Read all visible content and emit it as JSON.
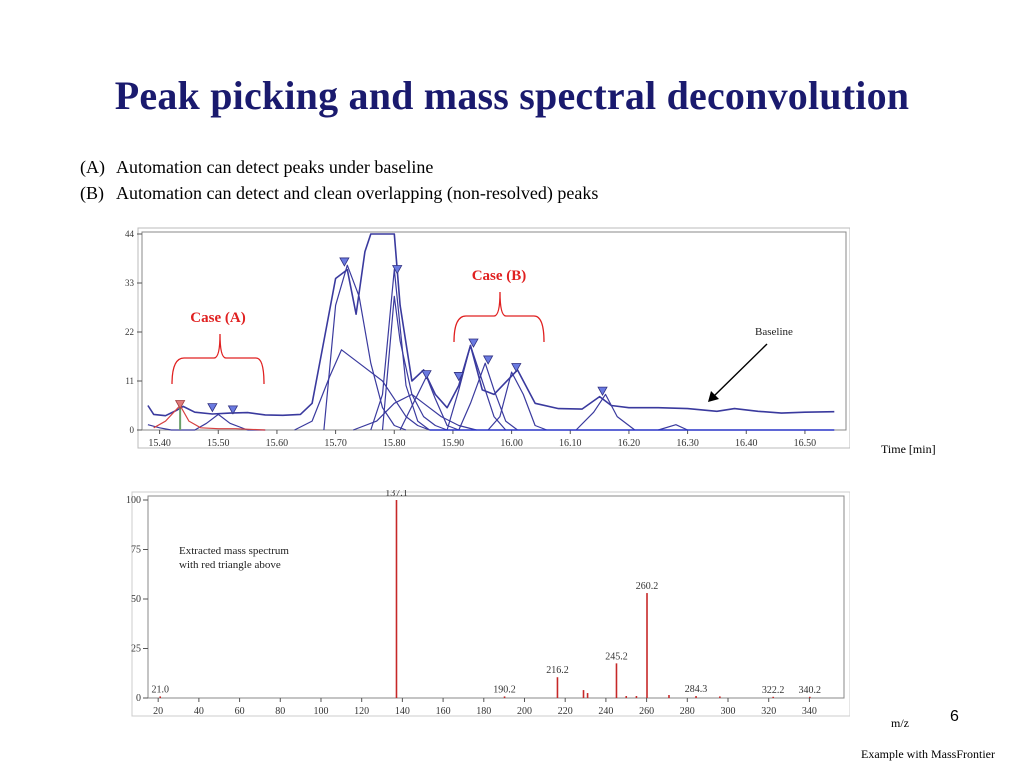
{
  "slide": {
    "title": "Peak picking and mass spectral deconvolution",
    "bullets": [
      {
        "tag": "(A)",
        "text": "Automation can detect peaks under baseline"
      },
      {
        "tag": "(B)",
        "text": "Automation can detect and clean overlapping (non-resolved) peaks"
      }
    ],
    "time_axis_label": "Time [min]",
    "mz_axis_label": "m/z",
    "footer": "Example with MassFrontier",
    "slide_number": "6"
  },
  "colors": {
    "title": "#1a1a6e",
    "trace": "#3a3a9e",
    "marker": "#6a7ae0",
    "marker_red": "#e07a7a",
    "case_annotation": "#e02020",
    "spectrum_line": "#c62828"
  },
  "chart_data": [
    {
      "type": "line",
      "xlim": [
        15.37,
        16.57
      ],
      "ylim": [
        0,
        44
      ],
      "x_ticks": [
        15.4,
        15.5,
        15.6,
        15.7,
        15.8,
        15.9,
        16.0,
        16.1,
        16.2,
        16.3,
        16.4,
        16.5
      ],
      "x_tick_labels": [
        "15.40",
        "15.50",
        "15.60",
        "15.70",
        "15.80",
        "15.90",
        "16.00",
        "16.10",
        "16.20",
        "16.30",
        "16.40",
        "16.50"
      ],
      "y_ticks": [
        0,
        11,
        22,
        33,
        44
      ],
      "y_tick_labels": [
        "0",
        "11",
        "22",
        "33",
        "44"
      ],
      "xlabel": "Time [min]",
      "series": [
        {
          "values": [
            [
              15.38,
              5.5
            ],
            [
              15.39,
              3.5
            ],
            [
              15.41,
              3.2
            ],
            [
              15.43,
              4.5
            ],
            [
              15.44,
              5.3
            ],
            [
              15.46,
              4.0
            ],
            [
              15.49,
              3.6
            ],
            [
              15.52,
              3.8
            ],
            [
              15.55,
              3.9
            ],
            [
              15.58,
              3.4
            ],
            [
              15.61,
              3.3
            ],
            [
              15.64,
              3.5
            ],
            [
              15.66,
              6
            ],
            [
              15.68,
              20
            ],
            [
              15.7,
              34
            ],
            [
              15.72,
              36
            ],
            [
              15.735,
              26
            ],
            [
              15.75,
              40
            ],
            [
              15.76,
              44
            ],
            [
              15.8,
              44
            ],
            [
              15.81,
              28
            ],
            [
              15.83,
              11
            ],
            [
              15.85,
              13.5
            ],
            [
              15.87,
              8
            ],
            [
              15.89,
              5
            ],
            [
              15.91,
              10
            ],
            [
              15.93,
              19
            ],
            [
              15.95,
              9
            ],
            [
              15.97,
              8
            ],
            [
              16.01,
              13.5
            ],
            [
              16.04,
              6
            ],
            [
              16.08,
              4.8
            ],
            [
              16.12,
              4.7
            ],
            [
              16.15,
              7.5
            ],
            [
              16.17,
              5.5
            ],
            [
              16.2,
              5.0
            ],
            [
              16.25,
              5.0
            ],
            [
              16.3,
              4.8
            ],
            [
              16.35,
              4.2
            ],
            [
              16.38,
              4.8
            ],
            [
              16.42,
              4.2
            ],
            [
              16.46,
              3.8
            ],
            [
              16.5,
              4.0
            ],
            [
              16.55,
              4.1
            ]
          ]
        },
        {
          "values": [
            [
              15.63,
              0
            ],
            [
              15.66,
              2
            ],
            [
              15.69,
              12
            ],
            [
              15.71,
              18
            ],
            [
              15.74,
              15
            ],
            [
              15.78,
              11
            ],
            [
              15.8,
              7
            ],
            [
              15.82,
              3
            ],
            [
              15.84,
              1
            ],
            [
              15.86,
              0
            ]
          ]
        },
        {
          "values": [
            [
              15.68,
              0
            ],
            [
              15.7,
              28
            ],
            [
              15.72,
              37
            ],
            [
              15.74,
              30
            ],
            [
              15.76,
              15
            ],
            [
              15.78,
              5
            ],
            [
              15.8,
              1
            ],
            [
              15.82,
              0
            ]
          ]
        },
        {
          "values": [
            [
              15.76,
              0
            ],
            [
              15.78,
              8
            ],
            [
              15.8,
              36
            ],
            [
              15.82,
              10
            ],
            [
              15.84,
              2
            ],
            [
              15.86,
              0
            ]
          ]
        },
        {
          "values": [
            [
              15.78,
              0
            ],
            [
              15.8,
              30
            ],
            [
              15.81,
              20
            ],
            [
              15.83,
              8
            ],
            [
              15.85,
              3
            ],
            [
              15.87,
              1
            ],
            [
              15.89,
              0
            ]
          ]
        },
        {
          "values": [
            [
              15.73,
              0
            ],
            [
              15.77,
              2
            ],
            [
              15.8,
              6
            ],
            [
              15.83,
              8
            ],
            [
              15.85,
              6
            ],
            [
              15.88,
              3
            ],
            [
              15.91,
              1
            ],
            [
              15.94,
              0
            ]
          ]
        },
        {
          "values": [
            [
              15.81,
              0
            ],
            [
              15.84,
              8
            ],
            [
              15.855,
              12
            ],
            [
              15.87,
              7
            ],
            [
              15.89,
              1
            ],
            [
              15.91,
              0
            ]
          ]
        },
        {
          "values": [
            [
              15.89,
              0
            ],
            [
              15.91,
              9
            ],
            [
              15.93,
              19
            ],
            [
              15.95,
              11
            ],
            [
              15.97,
              3
            ],
            [
              15.99,
              0
            ]
          ]
        },
        {
          "values": [
            [
              15.91,
              0
            ],
            [
              15.93,
              6
            ],
            [
              15.955,
              15
            ],
            [
              15.97,
              9
            ],
            [
              15.99,
              2
            ],
            [
              16.01,
              0
            ]
          ]
        },
        {
          "values": [
            [
              15.96,
              0
            ],
            [
              15.98,
              3
            ],
            [
              16.0,
              13
            ],
            [
              16.02,
              8
            ],
            [
              16.04,
              1
            ],
            [
              16.06,
              0
            ]
          ]
        },
        {
          "values": [
            [
              16.11,
              0
            ],
            [
              16.14,
              4
            ],
            [
              16.16,
              8
            ],
            [
              16.18,
              3
            ],
            [
              16.21,
              0
            ]
          ]
        },
        {
          "values": [
            [
              16.25,
              0
            ],
            [
              16.28,
              1.2
            ],
            [
              16.3,
              0
            ]
          ]
        },
        {
          "values": [
            [
              15.38,
              1.2
            ],
            [
              15.4,
              0.5
            ],
            [
              15.42,
              0
            ],
            [
              15.46,
              0
            ],
            [
              15.48,
              1.5
            ],
            [
              15.5,
              3.5
            ],
            [
              15.52,
              1.5
            ],
            [
              15.55,
              0
            ],
            [
              15.58,
              0
            ]
          ]
        }
      ],
      "red_series": {
        "values": [
          [
            15.39,
            0.5
          ],
          [
            15.41,
            2
          ],
          [
            15.435,
            5.5
          ],
          [
            15.45,
            2
          ],
          [
            15.47,
            0.5
          ],
          [
            15.5,
            0.3
          ],
          [
            15.53,
            0.3
          ],
          [
            15.58,
            0
          ]
        ]
      },
      "blue_baseline": {
        "values": [
          [
            15.86,
            0
          ],
          [
            16.38,
            0
          ],
          [
            16.48,
            0
          ],
          [
            16.55,
            0
          ]
        ]
      },
      "markers": [
        {
          "x": 15.435,
          "y": 5.5,
          "color": "red"
        },
        {
          "x": 15.49,
          "y": 4.8,
          "color": "blue"
        },
        {
          "x": 15.525,
          "y": 4.3,
          "color": "blue"
        },
        {
          "x": 15.715,
          "y": 37.5,
          "color": "blue"
        },
        {
          "x": 15.805,
          "y": 35.8,
          "color": "blue"
        },
        {
          "x": 15.855,
          "y": 12.2,
          "color": "blue"
        },
        {
          "x": 15.91,
          "y": 11.8,
          "color": "blue"
        },
        {
          "x": 15.935,
          "y": 19.3,
          "color": "blue"
        },
        {
          "x": 15.96,
          "y": 15.5,
          "color": "blue"
        },
        {
          "x": 16.008,
          "y": 13.8,
          "color": "blue"
        },
        {
          "x": 16.155,
          "y": 8.5,
          "color": "blue"
        }
      ],
      "annotations": {
        "case_a": "Case (A)",
        "case_b": "Case (B)",
        "baseline": "Baseline"
      }
    },
    {
      "type": "bar",
      "xlim": [
        15,
        357
      ],
      "ylim": [
        0,
        100
      ],
      "x_ticks": [
        20,
        40,
        60,
        80,
        100,
        120,
        140,
        160,
        180,
        200,
        220,
        240,
        260,
        280,
        300,
        320,
        340
      ],
      "x_tick_labels": [
        "20",
        "40",
        "60",
        "80",
        "100",
        "120",
        "140",
        "160",
        "180",
        "200",
        "220",
        "240",
        "260",
        "280",
        "300",
        "320",
        "340"
      ],
      "y_ticks": [
        0,
        25,
        50,
        75,
        100
      ],
      "y_tick_labels": [
        "0",
        "25",
        "50",
        "75",
        "100"
      ],
      "xlabel": "m/z",
      "peaks": [
        {
          "x": 21.0,
          "y": 0.8,
          "label": "21.0"
        },
        {
          "x": 137.1,
          "y": 100,
          "label": "137.1"
        },
        {
          "x": 190.2,
          "y": 0.8,
          "label": "190.2"
        },
        {
          "x": 216.2,
          "y": 10.5,
          "label": "216.2"
        },
        {
          "x": 229.0,
          "y": 4.0,
          "label": ""
        },
        {
          "x": 231.0,
          "y": 2.5,
          "label": ""
        },
        {
          "x": 245.2,
          "y": 17.5,
          "label": "245.2"
        },
        {
          "x": 250.0,
          "y": 1.0,
          "label": ""
        },
        {
          "x": 255.0,
          "y": 1.0,
          "label": ""
        },
        {
          "x": 260.2,
          "y": 53,
          "label": "260.2"
        },
        {
          "x": 271.0,
          "y": 1.5,
          "label": ""
        },
        {
          "x": 284.3,
          "y": 1.0,
          "label": "284.3"
        },
        {
          "x": 296.0,
          "y": 0.8,
          "label": ""
        },
        {
          "x": 322.2,
          "y": 0.6,
          "label": "322.2"
        },
        {
          "x": 340.2,
          "y": 0.6,
          "label": "340.2"
        }
      ],
      "annotation": "Extracted mass spectrum\nwith red triangle above"
    }
  ]
}
